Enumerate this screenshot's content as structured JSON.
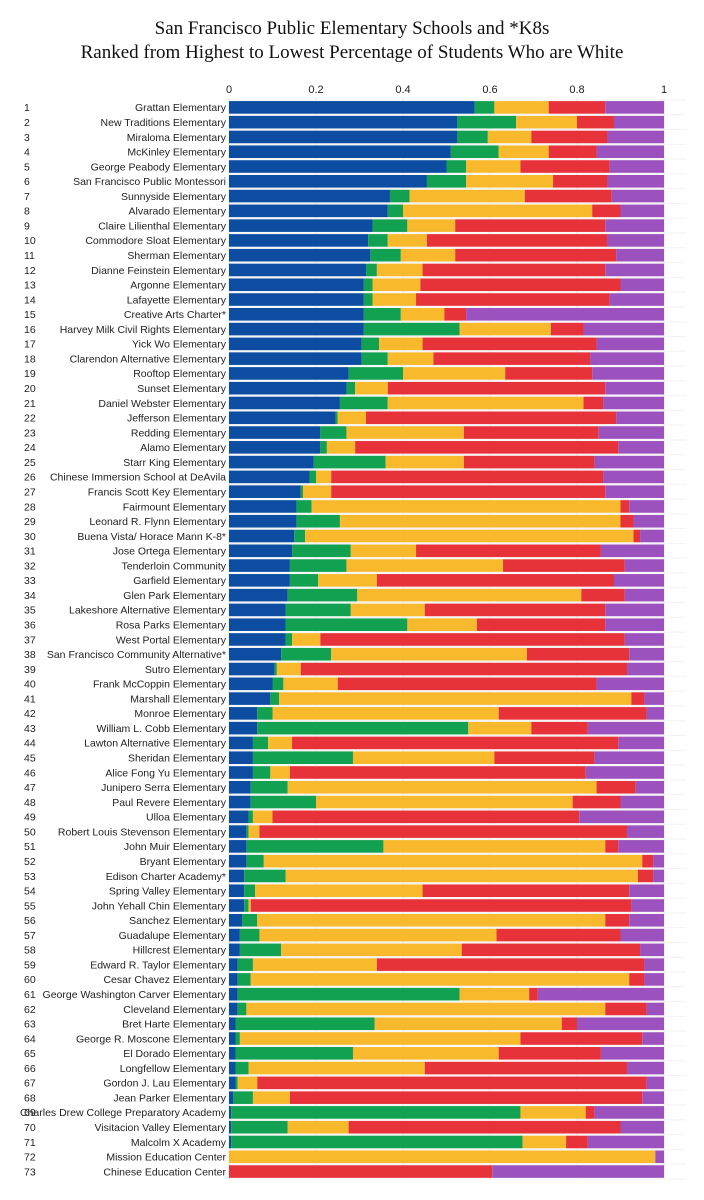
{
  "chart_data": {
    "type": "bar",
    "orientation": "horizontal",
    "stacked": true,
    "title": "San Francisco Public Elementary Schools and *K8s",
    "subtitle": "Ranked from Highest to Lowest  Percentage of Students Who are White",
    "xlim": [
      0,
      1
    ],
    "xticks": [
      0,
      0.2,
      0.4,
      0.6,
      0.8,
      1
    ],
    "xtick_labels": [
      "0",
      "0.2",
      "0.4",
      "0.6",
      "0.8",
      "1"
    ],
    "grid": true,
    "legend": "none",
    "colors": [
      "#0c4da2",
      "#12a150",
      "#f8b92d",
      "#e8323a",
      "#9b52be"
    ],
    "rows": [
      {
        "rank": "1",
        "name": "Grattan Elementary",
        "values": [
          0.565,
          0.045,
          0.125,
          0.13,
          0.135
        ]
      },
      {
        "rank": "2",
        "name": "New Traditions Elementary",
        "values": [
          0.525,
          0.135,
          0.14,
          0.085,
          0.115
        ]
      },
      {
        "rank": "3",
        "name": "Miraloma Elementary",
        "values": [
          0.525,
          0.07,
          0.1,
          0.175,
          0.13
        ]
      },
      {
        "rank": "4",
        "name": "McKinley Elementary",
        "values": [
          0.51,
          0.11,
          0.115,
          0.11,
          0.155
        ]
      },
      {
        "rank": "5",
        "name": "George Peabody Elementary",
        "values": [
          0.5,
          0.045,
          0.125,
          0.205,
          0.125
        ]
      },
      {
        "rank": "6",
        "name": "San Francisco Public Montessori",
        "values": [
          0.455,
          0.09,
          0.2,
          0.125,
          0.13
        ]
      },
      {
        "rank": "7",
        "name": "Sunnyside Elementary",
        "values": [
          0.37,
          0.045,
          0.265,
          0.2,
          0.12
        ]
      },
      {
        "rank": "8",
        "name": "Alvarado Elementary",
        "values": [
          0.365,
          0.035,
          0.435,
          0.065,
          0.1
        ]
      },
      {
        "rank": "9",
        "name": "Claire Lilienthal Elementary",
        "values": [
          0.33,
          0.08,
          0.11,
          0.345,
          0.135
        ]
      },
      {
        "rank": "10",
        "name": "Commodore Sloat Elementary",
        "values": [
          0.32,
          0.045,
          0.09,
          0.415,
          0.13
        ]
      },
      {
        "rank": "11",
        "name": "Sherman Elementary",
        "values": [
          0.325,
          0.07,
          0.125,
          0.37,
          0.11
        ]
      },
      {
        "rank": "12",
        "name": "Dianne Feinstein Elementary",
        "values": [
          0.315,
          0.025,
          0.105,
          0.42,
          0.135
        ]
      },
      {
        "rank": "13",
        "name": "Argonne Elementary",
        "values": [
          0.31,
          0.02,
          0.11,
          0.46,
          0.1
        ]
      },
      {
        "rank": "14",
        "name": "Lafayette Elementary",
        "values": [
          0.31,
          0.02,
          0.1,
          0.445,
          0.125
        ]
      },
      {
        "rank": "15",
        "name": "Creative Arts Charter*",
        "values": [
          0.31,
          0.085,
          0.1,
          0.05,
          0.455
        ]
      },
      {
        "rank": "16",
        "name": "Harvey Milk Civil Rights Elementary",
        "values": [
          0.31,
          0.22,
          0.21,
          0.075,
          0.185
        ]
      },
      {
        "rank": "17",
        "name": "Yick Wo Elementary",
        "values": [
          0.305,
          0.04,
          0.1,
          0.4,
          0.155
        ]
      },
      {
        "rank": "18",
        "name": "Clarendon Alternative Elementary",
        "values": [
          0.305,
          0.06,
          0.105,
          0.36,
          0.17
        ]
      },
      {
        "rank": "19",
        "name": "Rooftop Elementary",
        "values": [
          0.275,
          0.125,
          0.235,
          0.2,
          0.165
        ]
      },
      {
        "rank": "20",
        "name": "Sunset Elementary",
        "values": [
          0.27,
          0.02,
          0.075,
          0.5,
          0.135
        ]
      },
      {
        "rank": "21",
        "name": "Daniel Webster Elementary",
        "values": [
          0.255,
          0.11,
          0.45,
          0.045,
          0.14
        ]
      },
      {
        "rank": "22",
        "name": "Jefferson Elementary",
        "values": [
          0.245,
          0.005,
          0.065,
          0.575,
          0.11
        ]
      },
      {
        "rank": "23",
        "name": "Redding Elementary",
        "values": [
          0.21,
          0.06,
          0.27,
          0.31,
          0.15
        ]
      },
      {
        "rank": "24",
        "name": "Alamo Elementary",
        "values": [
          0.21,
          0.015,
          0.065,
          0.605,
          0.105
        ]
      },
      {
        "rank": "25",
        "name": "Starr King Elementary",
        "values": [
          0.195,
          0.165,
          0.18,
          0.3,
          0.16
        ]
      },
      {
        "rank": "26",
        "name": "Chinese Immersion School at DeAvila",
        "values": [
          0.185,
          0.015,
          0.035,
          0.625,
          0.14
        ]
      },
      {
        "rank": "27",
        "name": "Francis Scott Key Elementary",
        "values": [
          0.165,
          0.005,
          0.065,
          0.63,
          0.135
        ]
      },
      {
        "rank": "28",
        "name": "Fairmount Elementary",
        "values": [
          0.155,
          0.035,
          0.71,
          0.02,
          0.08
        ]
      },
      {
        "rank": "29",
        "name": "Leonard R. Flynn Elementary",
        "values": [
          0.155,
          0.1,
          0.645,
          0.03,
          0.07
        ]
      },
      {
        "rank": "30",
        "name": "Buena Vista/ Horace Mann K-8*",
        "values": [
          0.15,
          0.025,
          0.755,
          0.015,
          0.055
        ]
      },
      {
        "rank": "31",
        "name": "Jose Ortega Elementary",
        "values": [
          0.145,
          0.135,
          0.15,
          0.425,
          0.145
        ]
      },
      {
        "rank": "32",
        "name": "Tenderloin Community",
        "values": [
          0.14,
          0.13,
          0.36,
          0.28,
          0.09
        ]
      },
      {
        "rank": "33",
        "name": "Garfield Elementary",
        "values": [
          0.14,
          0.065,
          0.135,
          0.545,
          0.115
        ]
      },
      {
        "rank": "34",
        "name": "Glen Park Elementary",
        "values": [
          0.135,
          0.16,
          0.515,
          0.1,
          0.09
        ]
      },
      {
        "rank": "35",
        "name": "Lakeshore Alternative Elementary",
        "values": [
          0.13,
          0.15,
          0.17,
          0.415,
          0.135
        ]
      },
      {
        "rank": "36",
        "name": "Rosa Parks Elementary",
        "values": [
          0.13,
          0.28,
          0.16,
          0.295,
          0.135
        ]
      },
      {
        "rank": "37",
        "name": "West Portal Elementary",
        "values": [
          0.13,
          0.015,
          0.065,
          0.7,
          0.09
        ]
      },
      {
        "rank": "38",
        "name": "San Francisco Community Alternative*",
        "values": [
          0.12,
          0.115,
          0.45,
          0.235,
          0.08
        ]
      },
      {
        "rank": "39",
        "name": "Sutro Elementary",
        "values": [
          0.105,
          0.005,
          0.055,
          0.75,
          0.085
        ]
      },
      {
        "rank": "40",
        "name": "Frank McCoppin Elementary",
        "values": [
          0.1,
          0.025,
          0.125,
          0.595,
          0.155
        ]
      },
      {
        "rank": "41",
        "name": "Marshall Elementary",
        "values": [
          0.095,
          0.02,
          0.81,
          0.03,
          0.045
        ]
      },
      {
        "rank": "42",
        "name": "Monroe Elementary",
        "values": [
          0.065,
          0.035,
          0.52,
          0.34,
          0.04
        ]
      },
      {
        "rank": "43",
        "name": "William L. Cobb Elementary",
        "values": [
          0.065,
          0.485,
          0.145,
          0.13,
          0.175
        ]
      },
      {
        "rank": "44",
        "name": "Lawton Alternative Elementary",
        "values": [
          0.055,
          0.035,
          0.055,
          0.75,
          0.105
        ]
      },
      {
        "rank": "45",
        "name": "Sheridan Elementary",
        "values": [
          0.055,
          0.23,
          0.325,
          0.23,
          0.16
        ]
      },
      {
        "rank": "46",
        "name": "Alice Fong Yu Elementary",
        "values": [
          0.055,
          0.04,
          0.045,
          0.68,
          0.18
        ]
      },
      {
        "rank": "47",
        "name": "Junipero Serra Elementary",
        "values": [
          0.05,
          0.085,
          0.71,
          0.09,
          0.065
        ]
      },
      {
        "rank": "48",
        "name": "Paul Revere Elementary",
        "values": [
          0.05,
          0.15,
          0.59,
          0.11,
          0.1
        ]
      },
      {
        "rank": "49",
        "name": "Ulloa Elementary",
        "values": [
          0.045,
          0.01,
          0.045,
          0.705,
          0.195
        ]
      },
      {
        "rank": "50",
        "name": "Robert Louis Stevenson Elementary",
        "values": [
          0.04,
          0.005,
          0.025,
          0.845,
          0.085
        ]
      },
      {
        "rank": "51",
        "name": "John Muir Elementary",
        "values": [
          0.04,
          0.315,
          0.51,
          0.03,
          0.105
        ]
      },
      {
        "rank": "52",
        "name": "Bryant Elementary",
        "values": [
          0.04,
          0.04,
          0.87,
          0.025,
          0.025
        ]
      },
      {
        "rank": "53",
        "name": "Edison Charter Academy*",
        "values": [
          0.035,
          0.095,
          0.81,
          0.035,
          0.025
        ]
      },
      {
        "rank": "54",
        "name": "Spring Valley Elementary",
        "values": [
          0.035,
          0.025,
          0.385,
          0.475,
          0.08
        ]
      },
      {
        "rank": "55",
        "name": "John Yehall Chin Elementary",
        "values": [
          0.035,
          0.01,
          0.005,
          0.875,
          0.075
        ]
      },
      {
        "rank": "56",
        "name": "Sanchez Elementary",
        "values": [
          0.03,
          0.035,
          0.8,
          0.055,
          0.08
        ]
      },
      {
        "rank": "57",
        "name": "Guadalupe Elementary",
        "values": [
          0.025,
          0.045,
          0.545,
          0.285,
          0.1
        ]
      },
      {
        "rank": "58",
        "name": "Hillcrest Elementary",
        "values": [
          0.025,
          0.095,
          0.415,
          0.41,
          0.055
        ]
      },
      {
        "rank": "59",
        "name": "Edward R. Taylor Elementary",
        "values": [
          0.02,
          0.035,
          0.285,
          0.615,
          0.045
        ]
      },
      {
        "rank": "60",
        "name": "Cesar Chavez Elementary",
        "values": [
          0.02,
          0.03,
          0.87,
          0.035,
          0.045
        ]
      },
      {
        "rank": "61",
        "name": "George Washington Carver Elementary",
        "values": [
          0.02,
          0.51,
          0.16,
          0.02,
          0.29
        ]
      },
      {
        "rank": "62",
        "name": "Cleveland Elementary",
        "values": [
          0.02,
          0.02,
          0.825,
          0.095,
          0.04
        ]
      },
      {
        "rank": "63",
        "name": "Bret Harte Elementary",
        "values": [
          0.015,
          0.32,
          0.43,
          0.035,
          0.2
        ]
      },
      {
        "rank": "64",
        "name": "George R. Moscone Elementary",
        "values": [
          0.015,
          0.01,
          0.645,
          0.28,
          0.05
        ]
      },
      {
        "rank": "65",
        "name": "El Dorado Elementary",
        "values": [
          0.015,
          0.27,
          0.335,
          0.235,
          0.145
        ]
      },
      {
        "rank": "66",
        "name": "Longfellow Elementary",
        "values": [
          0.015,
          0.03,
          0.405,
          0.465,
          0.085
        ]
      },
      {
        "rank": "67",
        "name": "Gordon J. Lau Elementary",
        "values": [
          0.015,
          0.005,
          0.045,
          0.895,
          0.04
        ]
      },
      {
        "rank": "68",
        "name": "Jean Parker Elementary",
        "values": [
          0.01,
          0.045,
          0.085,
          0.81,
          0.05
        ]
      },
      {
        "rank": "69",
        "name": "Charles Drew College Preparatory Academy",
        "values": [
          0.005,
          0.665,
          0.15,
          0.02,
          0.16
        ]
      },
      {
        "rank": "70",
        "name": "Visitacion Valley Elementary",
        "values": [
          0.005,
          0.13,
          0.14,
          0.625,
          0.1
        ]
      },
      {
        "rank": "71",
        "name": "Malcolm X Academy",
        "values": [
          0.005,
          0.67,
          0.1,
          0.05,
          0.175
        ]
      },
      {
        "rank": "72",
        "name": "Mission Education Center",
        "values": [
          0,
          0,
          0.98,
          0,
          0.02
        ]
      },
      {
        "rank": "73",
        "name": "Chinese Education Center",
        "values": [
          0,
          0,
          0,
          0.605,
          0.395
        ]
      }
    ]
  }
}
